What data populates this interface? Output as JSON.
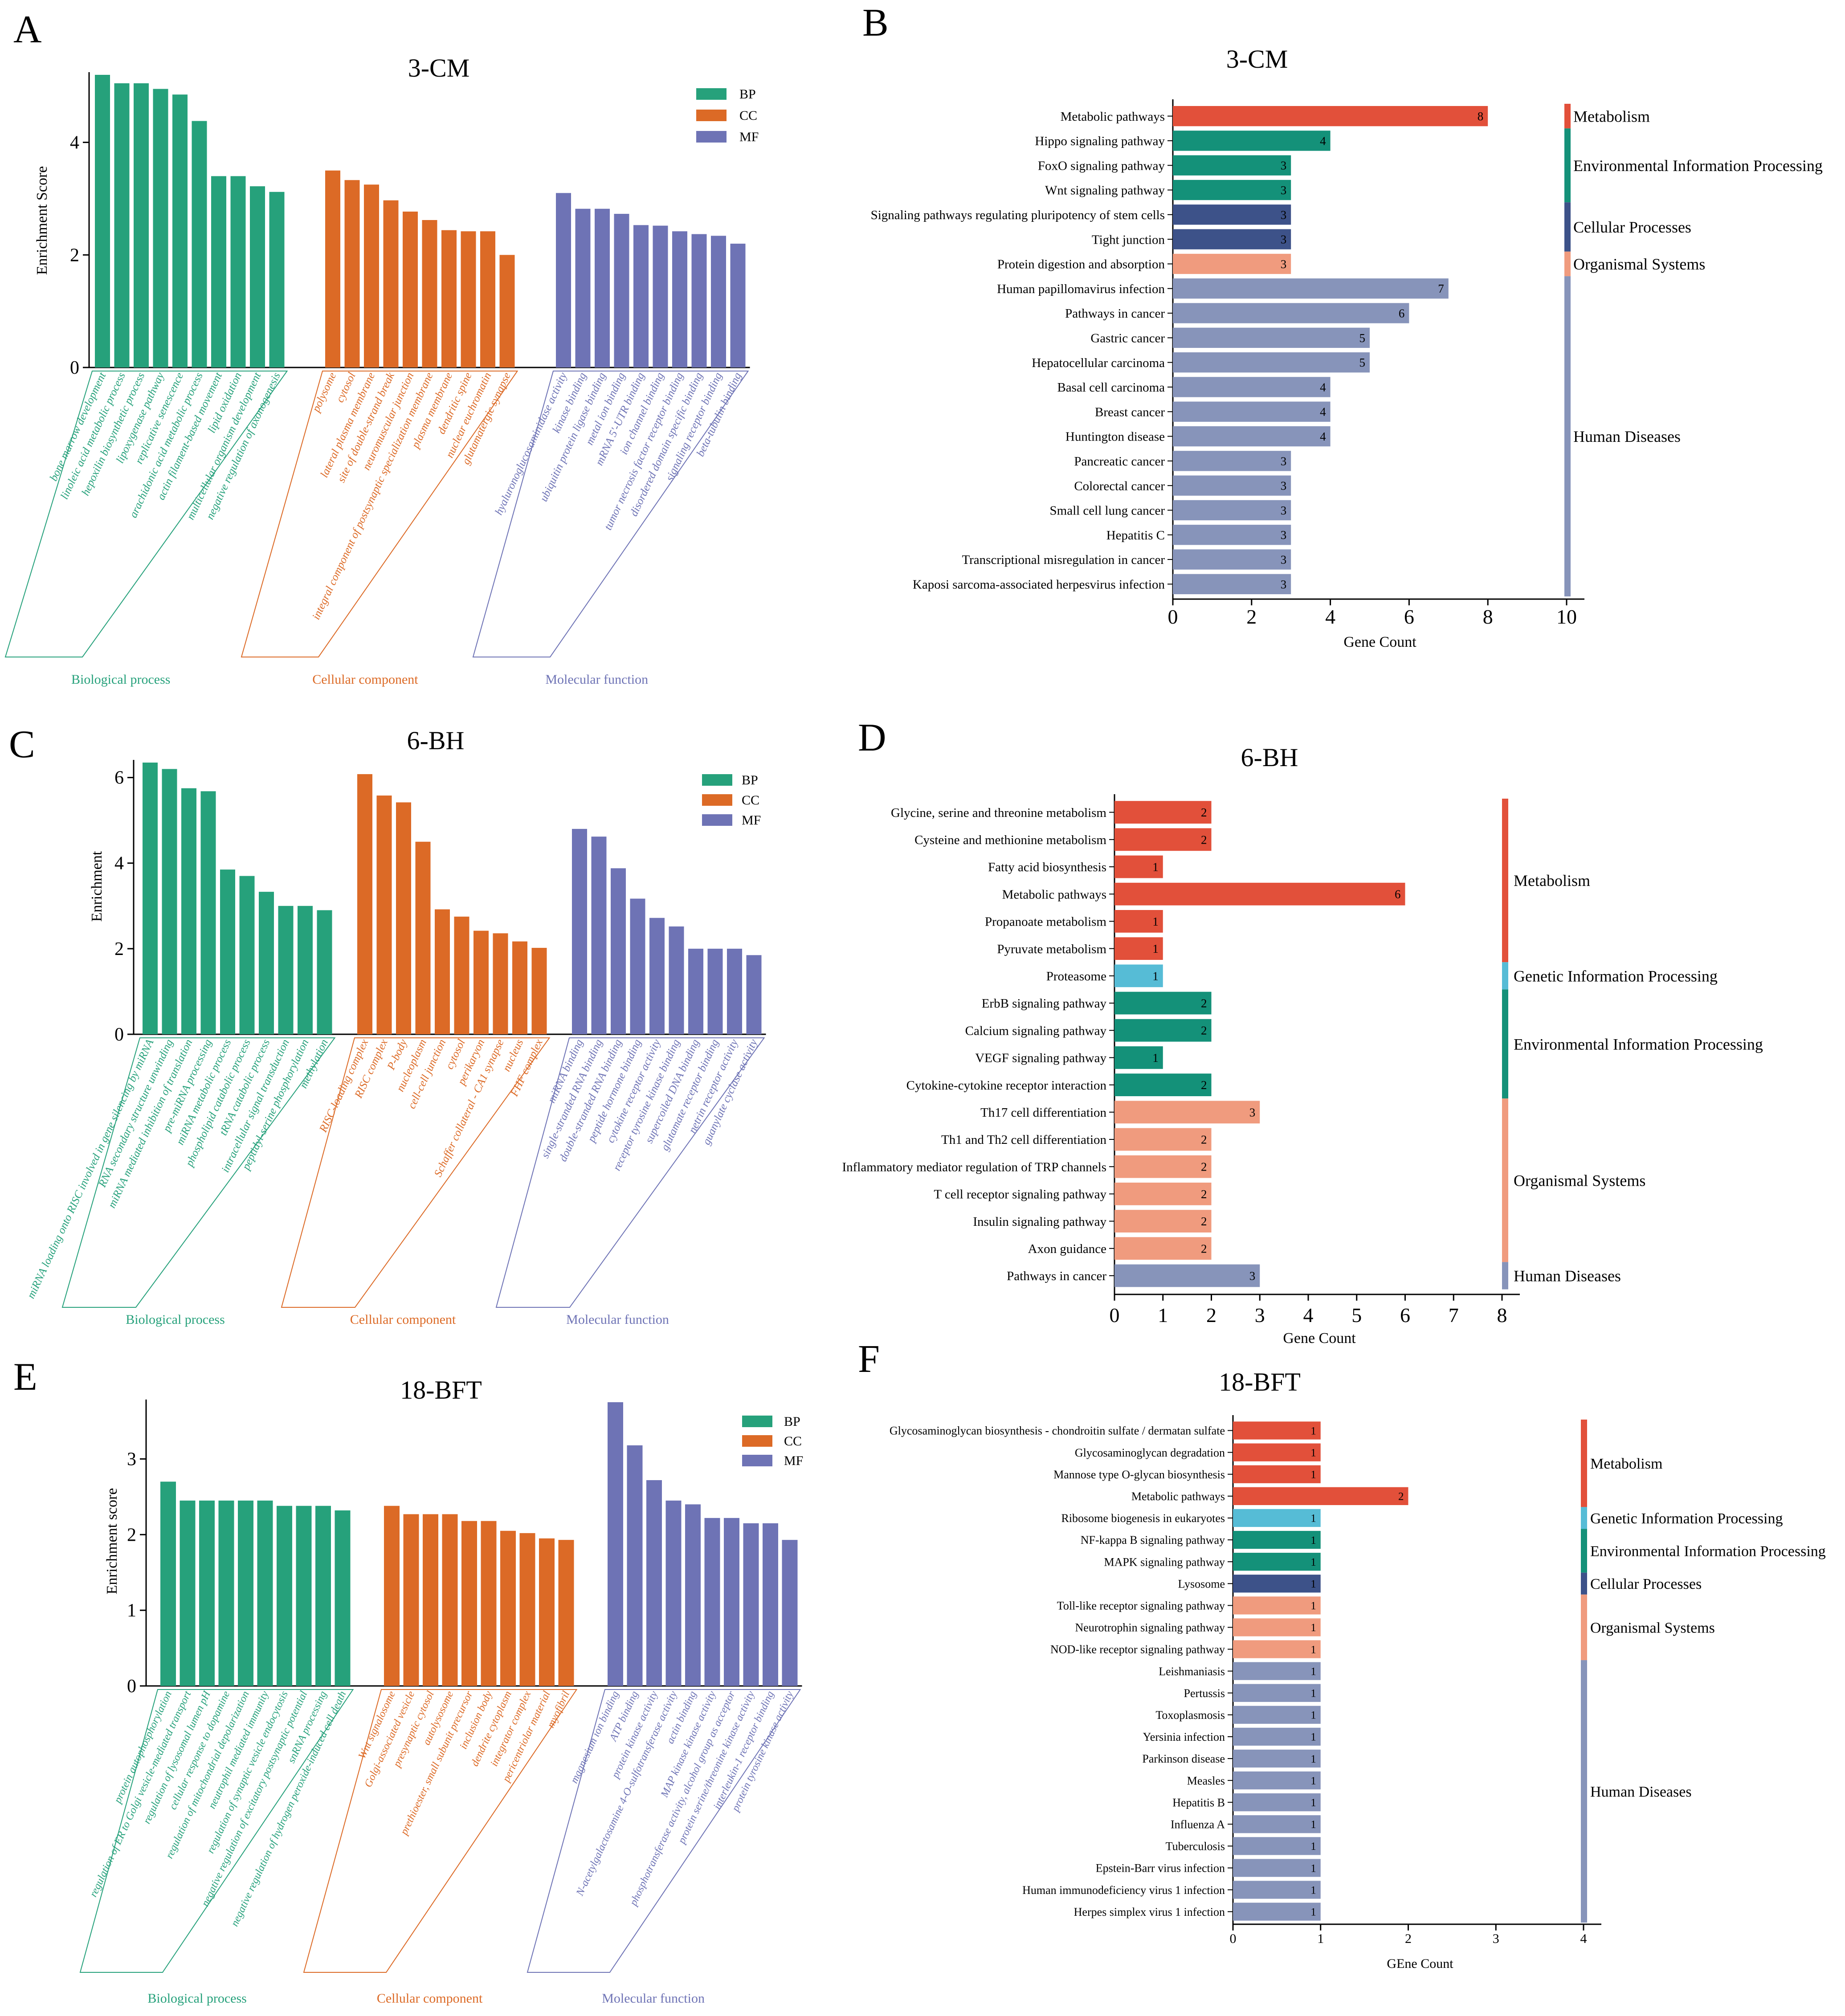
{
  "colors": {
    "BP": "#26a17b",
    "CC": "#dc6a26",
    "MF": "#6e73b5",
    "Metabolism": "#e2503a",
    "Genetic Information Processing": "#56bcd6",
    "Environmental Information Processing": "#149179",
    "Cellular Processes": "#3d5289",
    "Organismal Systems": "#f09b7e",
    "Human Diseases": "#8794ba"
  },
  "chart_data": [
    {
      "panel": "A",
      "type": "bar",
      "title": "3-CM",
      "ylabel": "Enrichment Score",
      "ylim": [
        0,
        5.2
      ],
      "yticks": [
        0,
        2,
        4
      ],
      "legend": [
        "BP",
        "CC",
        "MF"
      ],
      "groups": [
        {
          "name": "Biological process",
          "key": "BP",
          "categories": [
            "bone marrow development",
            "linoleic acid metabolic process",
            "hepoxilin biosynthetic process",
            "lipoxygenase pathway",
            "replicative senescence",
            "arachidonic acid metabolic process",
            "actin filament-based movement",
            "lipid oxidation",
            "multicellular organism development",
            "negative regulation of axonogenesis"
          ],
          "values": [
            5.2,
            5.05,
            5.05,
            4.95,
            4.85,
            4.38,
            3.4,
            3.4,
            3.22,
            3.12
          ]
        },
        {
          "name": "Cellular component",
          "key": "CC",
          "categories": [
            "polysome",
            "cytosol",
            "lateral plasma membrane",
            "site of double-strand break",
            "neuromuscular junction",
            "integral component of postsynaptic specialization membrane",
            "plasma membrane",
            "dendritic spine",
            "nuclear euchromatin",
            "glutamatergic synapse"
          ],
          "values": [
            3.5,
            3.33,
            3.25,
            2.97,
            2.77,
            2.62,
            2.44,
            2.42,
            2.42,
            2.0
          ]
        },
        {
          "name": "Molecular function",
          "key": "MF",
          "categories": [
            "hyaluronoglucosaminidase activity",
            "kinase binding",
            "ubiquitin protein ligase binding",
            "metal ion binding",
            "mRNA 5'-UTR binding",
            "ion channel binding",
            "tumor necrosis factor receptor binding",
            "disordered domain specific binding",
            "signaling receptor binding",
            "beta-tubulin binding"
          ],
          "values": [
            3.1,
            2.82,
            2.82,
            2.73,
            2.53,
            2.52,
            2.42,
            2.37,
            2.34,
            2.2
          ]
        }
      ]
    },
    {
      "panel": "B",
      "type": "bar",
      "orientation": "horizontal",
      "title": "3-CM",
      "xlabel": "Gene Count",
      "xlim": [
        0,
        10
      ],
      "xticks": [
        0,
        2,
        4,
        6,
        8,
        10
      ],
      "categories": [
        "Metabolic pathways",
        "Hippo signaling pathway",
        "FoxO signaling pathway",
        "Wnt signaling pathway",
        "Signaling pathways regulating pluripotency of stem cells",
        "Tight junction",
        "Protein digestion and absorption",
        "Human papillomavirus infection",
        "Pathways in cancer",
        "Gastric cancer",
        "Hepatocellular carcinoma",
        "Basal cell carcinoma",
        "Breast cancer",
        "Huntington disease",
        "Pancreatic cancer",
        "Colorectal cancer",
        "Small cell lung cancer",
        "Hepatitis C",
        "Transcriptional misregulation in cancer",
        "Kaposi sarcoma-associated herpesvirus infection"
      ],
      "values": [
        8,
        4,
        3,
        3,
        3,
        3,
        3,
        7,
        6,
        5,
        5,
        4,
        4,
        4,
        3,
        3,
        3,
        3,
        3,
        3
      ],
      "classes": [
        "Metabolism",
        "Environmental Information Processing",
        "Environmental Information Processing",
        "Environmental Information Processing",
        "Cellular Processes",
        "Cellular Processes",
        "Organismal Systems",
        "Human Diseases",
        "Human Diseases",
        "Human Diseases",
        "Human Diseases",
        "Human Diseases",
        "Human Diseases",
        "Human Diseases",
        "Human Diseases",
        "Human Diseases",
        "Human Diseases",
        "Human Diseases",
        "Human Diseases",
        "Human Diseases"
      ],
      "class_labels": [
        "Metabolism",
        "Environmental Information Processing",
        "Cellular Processes",
        "Organismal Systems",
        "Human Diseases"
      ]
    },
    {
      "panel": "C",
      "type": "bar",
      "title": "6-BH",
      "ylabel": "Enrichment",
      "ylim": [
        0,
        6.35
      ],
      "yticks": [
        0,
        2,
        4,
        6
      ],
      "legend": [
        "BP",
        "CC",
        "MF"
      ],
      "groups": [
        {
          "name": "Biological process",
          "key": "BP",
          "categories": [
            "miRNA loading onto RISC involved in gene silencing by miRNA",
            "RNA secondary structure unwinding",
            "miRNA mediated inhibition of translation",
            "pre-miRNA processing",
            "miRNA metabolic process",
            "phospholipid catabolic process",
            "tRNA catabolic process",
            "intracellular signal transduction",
            "peptidyl-serine phosphorylation",
            "methylation"
          ],
          "values": [
            6.35,
            6.2,
            5.75,
            5.68,
            3.85,
            3.7,
            3.33,
            3.0,
            3.0,
            2.9
          ]
        },
        {
          "name": "Cellular component",
          "key": "CC",
          "categories": [
            "RISC-loading complex",
            "RISC complex",
            "P-body",
            "nucleoplasm",
            "cell-cell junction",
            "cytosol",
            "perikaryon",
            "Schaffer collateral - CA1 synapse",
            "nucleus",
            "FHF complex"
          ],
          "values": [
            6.08,
            5.58,
            5.42,
            4.5,
            2.92,
            2.75,
            2.42,
            2.36,
            2.17,
            2.02
          ]
        },
        {
          "name": "Molecular function",
          "key": "MF",
          "categories": [
            "miRNA binding",
            "single-stranded RNA binding",
            "double-stranded RNA binding",
            "peptide hormone binding",
            "cytokine receptor activity",
            "receptor tyrosine kinase binding",
            "supercoiled DNA binding",
            "glutamate receptor binding",
            "netrin receptor activity",
            "guanylate cyclase activity"
          ],
          "values": [
            4.8,
            4.62,
            3.88,
            3.17,
            2.72,
            2.52,
            2.0,
            2.0,
            2.0,
            1.85
          ]
        }
      ]
    },
    {
      "panel": "D",
      "type": "bar",
      "orientation": "horizontal",
      "title": "6-BH",
      "xlabel": "Gene Count",
      "xlim": [
        0,
        8
      ],
      "xticks": [
        0,
        1,
        2,
        3,
        4,
        5,
        6,
        7,
        8
      ],
      "categories": [
        "Glycine, serine and threonine metabolism",
        "Cysteine and methionine metabolism",
        "Fatty acid biosynthesis",
        "Metabolic pathways",
        "Propanoate metabolism",
        "Pyruvate metabolism",
        "Proteasome",
        "ErbB signaling pathway",
        "Calcium signaling pathway",
        "VEGF signaling pathway",
        "Cytokine-cytokine receptor interaction",
        "Th17 cell differentiation",
        "Th1 and Th2 cell differentiation",
        "Inflammatory mediator regulation of TRP channels",
        "T cell receptor signaling pathway",
        "Insulin signaling pathway",
        "Axon guidance",
        "Pathways in cancer"
      ],
      "values": [
        2,
        2,
        1,
        6,
        1,
        1,
        1,
        2,
        2,
        1,
        2,
        3,
        2,
        2,
        2,
        2,
        2,
        3
      ],
      "classes": [
        "Metabolism",
        "Metabolism",
        "Metabolism",
        "Metabolism",
        "Metabolism",
        "Metabolism",
        "Genetic Information Processing",
        "Environmental Information Processing",
        "Environmental Information Processing",
        "Environmental Information Processing",
        "Environmental Information Processing",
        "Organismal Systems",
        "Organismal Systems",
        "Organismal Systems",
        "Organismal Systems",
        "Organismal Systems",
        "Organismal Systems",
        "Human Diseases"
      ],
      "class_labels": [
        "Metabolism",
        "Genetic Information Processing",
        "Environmental Information Processing",
        "Organismal Systems",
        "Human Diseases"
      ]
    },
    {
      "panel": "E",
      "type": "bar",
      "title": "18-BFT",
      "ylabel": "Enrichment score",
      "ylim": [
        0,
        3.75
      ],
      "yticks": [
        0,
        1,
        2,
        3
      ],
      "legend": [
        "BP",
        "CC",
        "MF"
      ],
      "groups": [
        {
          "name": "Biological process",
          "key": "BP",
          "categories": [
            "protein autophosphorylation",
            "regulation of ER to Golgi vesicle-mediated transport",
            "regulation of lysosomal lumen pH",
            "cellular response to dopamine",
            "regulation of mitochondrial depolarization",
            "neutrophil mediated immunity",
            "regulation of synaptic vesicle endocytosis",
            "negative regulation of excitatory postsynaptic potential",
            "snRNA processing",
            "negative regulation of hydrogen peroxide-induced cell death"
          ],
          "values": [
            2.7,
            2.45,
            2.45,
            2.45,
            2.45,
            2.45,
            2.38,
            2.38,
            2.38,
            2.32
          ]
        },
        {
          "name": "Cellular component",
          "key": "CC",
          "categories": [
            "Wnt signalosome",
            "Golgi-associated vesicle",
            "presynaptic cytosol",
            "autolysosome",
            "prethioester, small subunit precursor",
            "inclusion body",
            "dendrite cytoplasm",
            "integrator complex",
            "pericentriolar material",
            "myofibril"
          ],
          "values": [
            2.38,
            2.27,
            2.27,
            2.27,
            2.18,
            2.18,
            2.05,
            2.02,
            1.95,
            1.93
          ]
        },
        {
          "name": "Molecular function",
          "key": "MF",
          "categories": [
            "magnesium ion binding",
            "ATP binding",
            "protein kinase activity",
            "N-acetylgalactosamine 4-O-sulfotransferase activity",
            "actin binding",
            "MAP kinase kinase activity",
            "phosphotransferase activity, alcohol group as acceptor",
            "protein serine/threonine kinase activity",
            "interleukin-1 receptor binding",
            "protein tyrosine kinase activity"
          ],
          "values": [
            3.75,
            3.18,
            2.72,
            2.45,
            2.4,
            2.22,
            2.22,
            2.15,
            2.15,
            1.93
          ]
        }
      ]
    },
    {
      "panel": "F",
      "type": "bar",
      "orientation": "horizontal",
      "title": "18-BFT",
      "xlabel": "GEne Count",
      "xlim": [
        0,
        4
      ],
      "xticks": [
        0,
        1,
        2,
        3,
        4
      ],
      "categories": [
        "Glycosaminoglycan biosynthesis - chondroitin sulfate / dermatan sulfate",
        "Glycosaminoglycan degradation",
        "Mannose type O-glycan biosynthesis",
        "Metabolic pathways",
        "Ribosome biogenesis in eukaryotes",
        "NF-kappa B signaling pathway",
        "MAPK signaling pathway",
        "Lysosome",
        "Toll-like receptor signaling pathway",
        "Neurotrophin signaling pathway",
        "NOD-like receptor signaling pathway",
        "Leishmaniasis",
        "Pertussis",
        "Toxoplasmosis",
        "Yersinia infection",
        "Parkinson disease",
        "Measles",
        "Hepatitis B",
        "Influenza A",
        "Tuberculosis",
        "Epstein-Barr virus infection",
        "Human immunodeficiency virus 1 infection",
        "Herpes simplex virus 1 infection"
      ],
      "values": [
        1,
        1,
        1,
        2,
        1,
        1,
        1,
        1,
        1,
        1,
        1,
        1,
        1,
        1,
        1,
        1,
        1,
        1,
        1,
        1,
        1,
        1,
        1
      ],
      "classes": [
        "Metabolism",
        "Metabolism",
        "Metabolism",
        "Metabolism",
        "Genetic Information Processing",
        "Environmental Information Processing",
        "Environmental Information Processing",
        "Cellular Processes",
        "Organismal Systems",
        "Organismal Systems",
        "Organismal Systems",
        "Human Diseases",
        "Human Diseases",
        "Human Diseases",
        "Human Diseases",
        "Human Diseases",
        "Human Diseases",
        "Human Diseases",
        "Human Diseases",
        "Human Diseases",
        "Human Diseases",
        "Human Diseases",
        "Human Diseases"
      ],
      "class_labels": [
        "Metabolism",
        "Genetic Information Processing",
        "Environmental Information Processing",
        "Cellular Processes",
        "Organismal Systems",
        "Human Diseases"
      ]
    }
  ]
}
